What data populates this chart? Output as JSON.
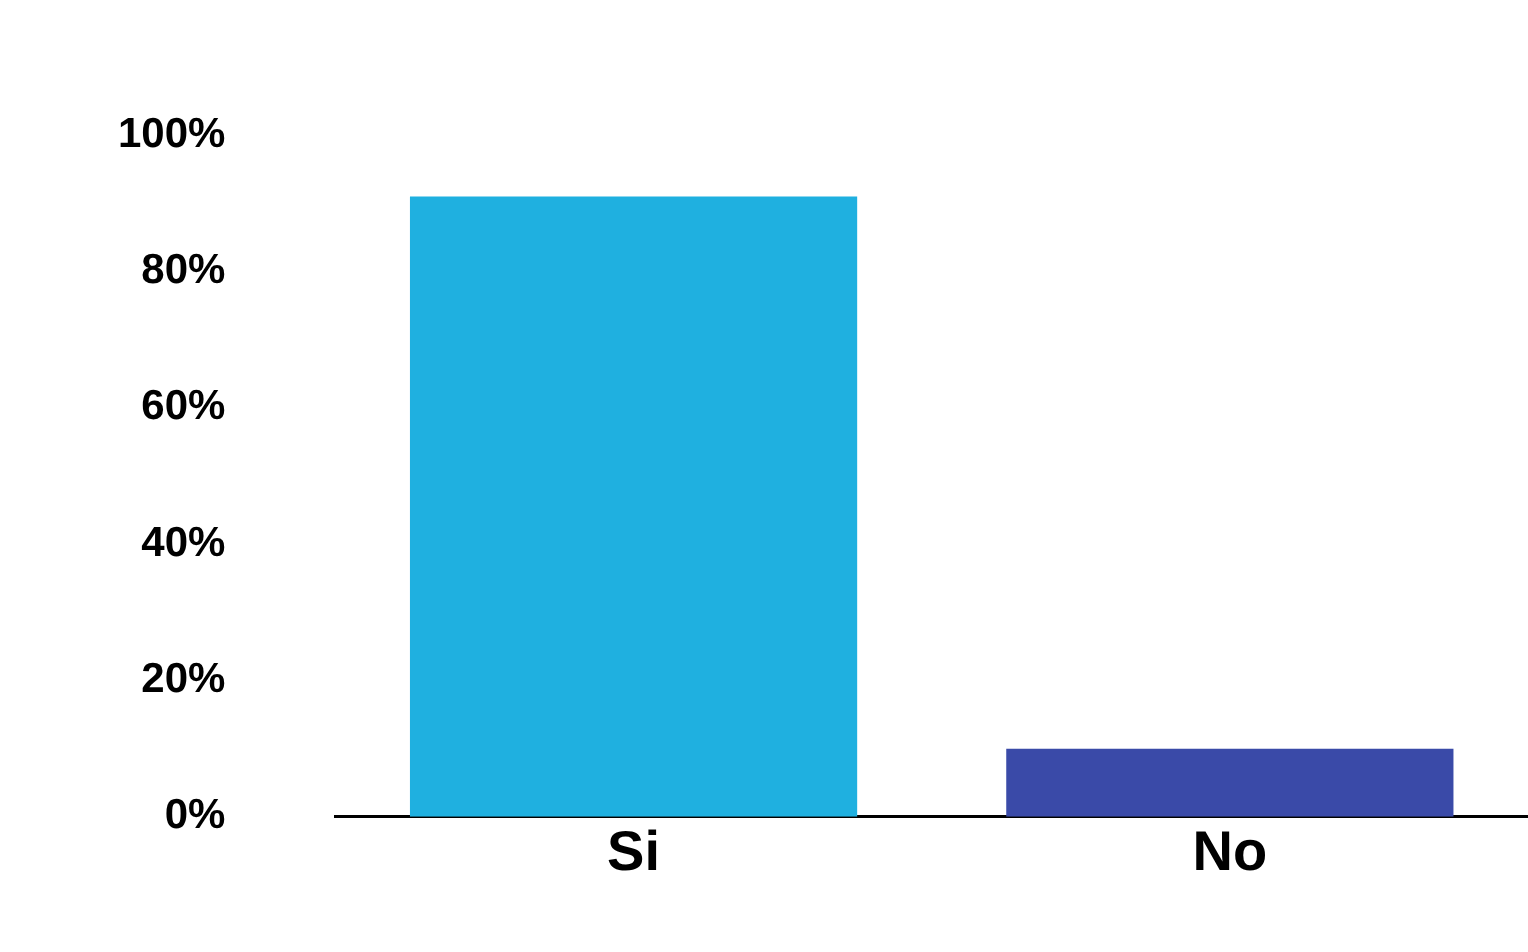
{
  "chart_data": {
    "type": "bar",
    "categories": [
      "Si",
      "No"
    ],
    "series": [
      {
        "colors": [
          "#1fb0e0",
          "#3a4aa8"
        ],
        "values": [
          91,
          10
        ]
      }
    ],
    "ylim": [
      0,
      100
    ],
    "yticks": [
      {
        "value": 0,
        "label": "0%"
      },
      {
        "value": 20,
        "label": "20%"
      },
      {
        "value": 40,
        "label": "40%"
      },
      {
        "value": 60,
        "label": "60%"
      },
      {
        "value": 80,
        "label": "80%"
      },
      {
        "value": 100,
        "label": "100%"
      }
    ],
    "grid": false,
    "legend": false
  }
}
